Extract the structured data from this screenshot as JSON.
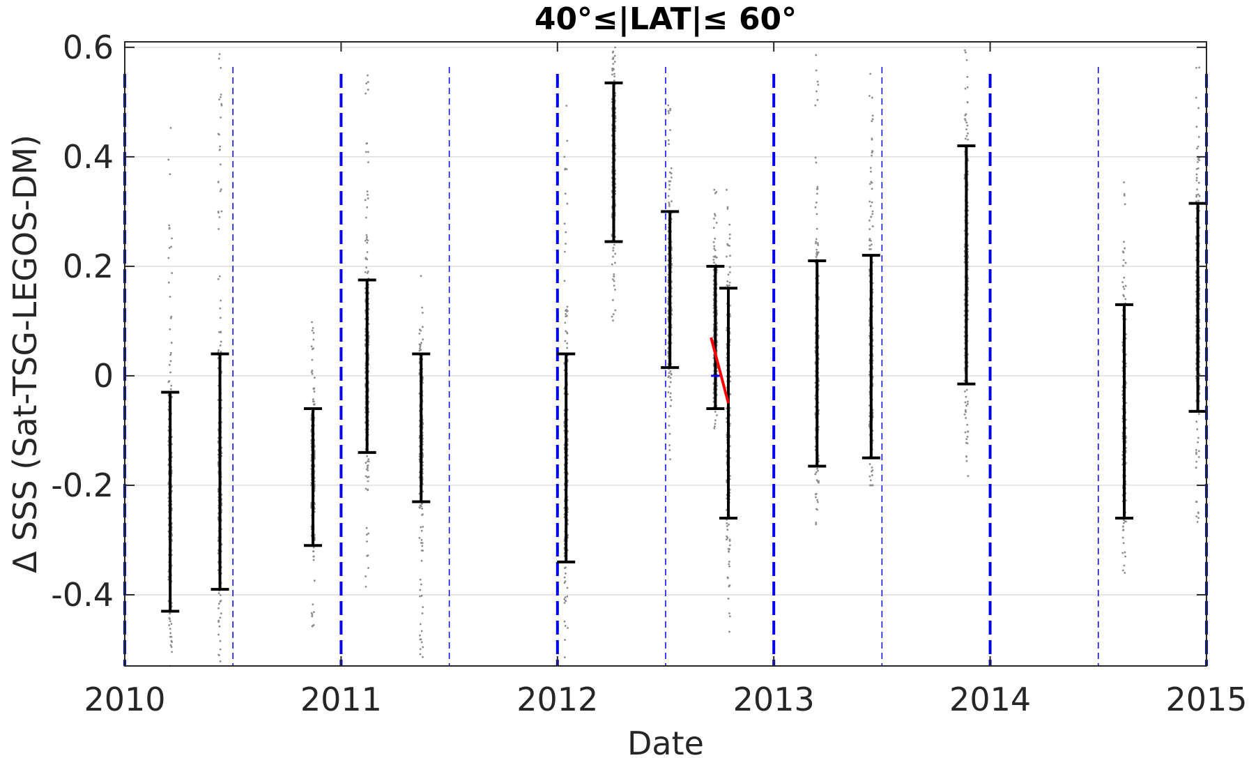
{
  "chart_data": {
    "type": "scatter",
    "title": "40°≤|LAT|≤ 60°",
    "xlabel": "Date",
    "ylabel": "Δ SSS (Sat-TSG-LEGOS-DM)",
    "xlim": [
      2010,
      2015
    ],
    "ylim": [
      -0.53,
      0.61
    ],
    "x_ticks": [
      2010,
      2011,
      2012,
      2013,
      2014,
      2015
    ],
    "x_tick_labels": [
      "2010",
      "2011",
      "2012",
      "2013",
      "2014",
      "2015"
    ],
    "y_ticks": [
      -0.4,
      -0.2,
      0,
      0.2,
      0.4,
      0.6
    ],
    "y_tick_labels": [
      "-0.4",
      "-0.2",
      "0",
      "0.2",
      "0.4",
      "0.6"
    ],
    "grid": "horizontal",
    "colors": {
      "error_bars": "#000000",
      "points": "#8c8c8c",
      "year_lines": "#0000ee",
      "trend": "#ff0000",
      "zero_marker": "#0000ff"
    },
    "year_boundaries": [
      2010,
      2011,
      2012,
      2013,
      2014,
      2015
    ],
    "half_year_lines": [
      2010.5,
      2011.5,
      2012.5,
      2013.5,
      2014.5
    ],
    "error_bars": [
      {
        "x": 2010.21,
        "low": -0.43,
        "high": -0.03,
        "scatter_low": -0.53,
        "scatter_high": 0.47
      },
      {
        "x": 2010.44,
        "low": -0.39,
        "high": 0.04,
        "scatter_low": -0.53,
        "scatter_high": 0.6
      },
      {
        "x": 2010.87,
        "low": -0.31,
        "high": -0.06,
        "scatter_low": -0.46,
        "scatter_high": 0.1
      },
      {
        "x": 2011.12,
        "low": -0.14,
        "high": 0.175,
        "scatter_low": -0.41,
        "scatter_high": 0.6
      },
      {
        "x": 2011.37,
        "low": -0.23,
        "high": 0.04,
        "scatter_low": -0.52,
        "scatter_high": 0.19
      },
      {
        "x": 2012.04,
        "low": -0.34,
        "high": 0.04,
        "scatter_low": -0.53,
        "scatter_high": 0.51
      },
      {
        "x": 2012.26,
        "low": 0.245,
        "high": 0.535,
        "scatter_low": 0.1,
        "scatter_high": 0.6
      },
      {
        "x": 2012.52,
        "low": 0.015,
        "high": 0.3,
        "scatter_low": -0.165,
        "scatter_high": 0.5
      },
      {
        "x": 2012.73,
        "low": -0.06,
        "high": 0.2,
        "scatter_low": -0.1,
        "scatter_high": 0.35
      },
      {
        "x": 2012.79,
        "low": -0.26,
        "high": 0.16,
        "scatter_low": -0.47,
        "scatter_high": 0.36
      },
      {
        "x": 2013.2,
        "low": -0.165,
        "high": 0.21,
        "scatter_low": -0.3,
        "scatter_high": 0.6
      },
      {
        "x": 2013.45,
        "low": -0.15,
        "high": 0.22,
        "scatter_low": -0.2,
        "scatter_high": 0.56
      },
      {
        "x": 2013.89,
        "low": -0.015,
        "high": 0.42,
        "scatter_low": -0.2,
        "scatter_high": 0.6
      },
      {
        "x": 2014.62,
        "low": -0.26,
        "high": 0.13,
        "scatter_low": -0.36,
        "scatter_high": 0.4
      },
      {
        "x": 2014.96,
        "low": -0.065,
        "high": 0.315,
        "scatter_low": -0.27,
        "scatter_high": 0.6
      }
    ],
    "trend_line": {
      "x": [
        2012.71,
        2012.79
      ],
      "y": [
        0.07,
        -0.05
      ]
    },
    "zero_segment": {
      "x": [
        2012.71,
        2012.76
      ],
      "y": [
        0,
        0
      ]
    }
  }
}
